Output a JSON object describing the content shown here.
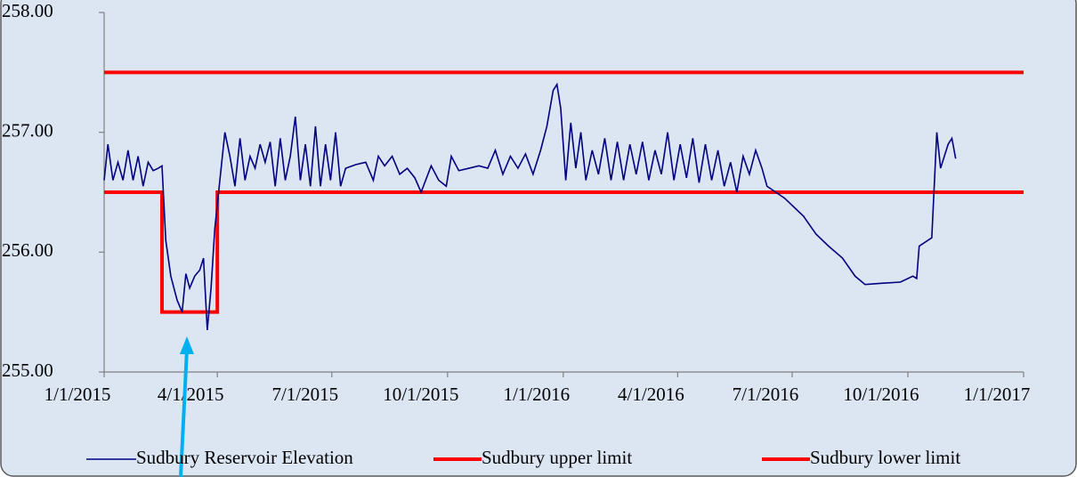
{
  "chart_data": {
    "type": "line",
    "xlim": [
      "2015-01-01",
      "2017-01-01"
    ],
    "xticks": [
      {
        "value": "2015-01-01",
        "label": "1/1/2015"
      },
      {
        "value": "2015-04-01",
        "label": "4/1/2015"
      },
      {
        "value": "2015-07-01",
        "label": "7/1/2015"
      },
      {
        "value": "2015-10-01",
        "label": "10/1/2015"
      },
      {
        "value": "2016-01-01",
        "label": "1/1/2016"
      },
      {
        "value": "2016-04-01",
        "label": "4/1/2016"
      },
      {
        "value": "2016-07-01",
        "label": "7/1/2016"
      },
      {
        "value": "2016-10-01",
        "label": "10/1/2016"
      },
      {
        "value": "2017-01-01",
        "label": "1/1/2017"
      }
    ],
    "ylim": [
      255,
      258
    ],
    "yticks": [
      {
        "value": 255,
        "label": "255.00"
      },
      {
        "value": 256,
        "label": "256.00"
      },
      {
        "value": 257,
        "label": "257.00"
      },
      {
        "value": 258,
        "label": "258.00"
      }
    ],
    "series": [
      {
        "name": "Sudbury Reservoir Elevation",
        "color": "#000080",
        "x": [
          "2015-01-01",
          "2015-01-04",
          "2015-01-08",
          "2015-01-12",
          "2015-01-16",
          "2015-01-20",
          "2015-01-24",
          "2015-01-28",
          "2015-02-01",
          "2015-02-05",
          "2015-02-09",
          "2015-02-13",
          "2015-02-16",
          "2015-02-19",
          "2015-02-23",
          "2015-02-28",
          "2015-03-04",
          "2015-03-07",
          "2015-03-10",
          "2015-03-14",
          "2015-03-18",
          "2015-03-21",
          "2015-03-24",
          "2015-03-27",
          "2015-03-30",
          "2015-04-03",
          "2015-04-07",
          "2015-04-11",
          "2015-04-15",
          "2015-04-19",
          "2015-04-23",
          "2015-04-27",
          "2015-05-01",
          "2015-05-05",
          "2015-05-09",
          "2015-05-13",
          "2015-05-17",
          "2015-05-21",
          "2015-05-25",
          "2015-05-29",
          "2015-06-02",
          "2015-06-06",
          "2015-06-10",
          "2015-06-14",
          "2015-06-18",
          "2015-06-22",
          "2015-06-26",
          "2015-06-30",
          "2015-07-04",
          "2015-07-08",
          "2015-07-12",
          "2015-07-20",
          "2015-07-28",
          "2015-08-03",
          "2015-08-07",
          "2015-08-12",
          "2015-08-18",
          "2015-08-24",
          "2015-08-30",
          "2015-09-05",
          "2015-09-10",
          "2015-09-18",
          "2015-09-24",
          "2015-09-30",
          "2015-10-04",
          "2015-10-10",
          "2015-10-18",
          "2015-10-26",
          "2015-11-02",
          "2015-11-08",
          "2015-11-14",
          "2015-11-20",
          "2015-11-26",
          "2015-12-02",
          "2015-12-08",
          "2015-12-14",
          "2015-12-19",
          "2015-12-24",
          "2015-12-27",
          "2015-12-30",
          "2016-01-03",
          "2016-01-07",
          "2016-01-11",
          "2016-01-15",
          "2016-01-19",
          "2016-01-24",
          "2016-01-29",
          "2016-02-03",
          "2016-02-08",
          "2016-02-13",
          "2016-02-18",
          "2016-02-23",
          "2016-02-28",
          "2016-03-04",
          "2016-03-09",
          "2016-03-14",
          "2016-03-19",
          "2016-03-24",
          "2016-03-29",
          "2016-04-03",
          "2016-04-08",
          "2016-04-13",
          "2016-04-18",
          "2016-04-23",
          "2016-04-28",
          "2016-05-03",
          "2016-05-08",
          "2016-05-13",
          "2016-05-18",
          "2016-05-23",
          "2016-05-28",
          "2016-06-02",
          "2016-06-07",
          "2016-06-11",
          "2016-06-25",
          "2016-07-10",
          "2016-07-20",
          "2016-07-30",
          "2016-08-10",
          "2016-08-20",
          "2016-08-28",
          "2016-09-10",
          "2016-09-25",
          "2016-10-05",
          "2016-10-08",
          "2016-10-10",
          "2016-10-20",
          "2016-10-24",
          "2016-10-27",
          "2016-11-02",
          "2016-11-05",
          "2016-11-08"
        ],
        "values": [
          256.6,
          256.9,
          256.6,
          256.75,
          256.6,
          256.85,
          256.6,
          256.8,
          256.55,
          256.75,
          256.68,
          256.7,
          256.72,
          256.1,
          255.8,
          255.6,
          255.5,
          255.82,
          255.7,
          255.8,
          255.85,
          255.95,
          255.35,
          255.7,
          256.2,
          256.6,
          257.0,
          256.8,
          256.55,
          256.95,
          256.6,
          256.8,
          256.7,
          256.9,
          256.75,
          256.92,
          256.55,
          256.95,
          256.6,
          256.8,
          257.13,
          256.6,
          256.9,
          256.55,
          257.05,
          256.55,
          256.9,
          256.6,
          257.0,
          256.55,
          256.7,
          256.73,
          256.75,
          256.6,
          256.8,
          256.72,
          256.8,
          256.65,
          256.7,
          256.62,
          256.5,
          256.72,
          256.6,
          256.55,
          256.8,
          256.68,
          256.7,
          256.72,
          256.7,
          256.85,
          256.65,
          256.8,
          256.7,
          256.82,
          256.65,
          256.85,
          257.05,
          257.35,
          257.4,
          257.2,
          256.6,
          257.08,
          256.7,
          257.0,
          256.6,
          256.85,
          256.65,
          256.95,
          256.6,
          256.92,
          256.6,
          256.9,
          256.65,
          256.92,
          256.6,
          256.85,
          256.65,
          257.0,
          256.6,
          256.9,
          256.62,
          256.95,
          256.58,
          256.9,
          256.6,
          256.85,
          256.55,
          256.75,
          256.5,
          256.8,
          256.65,
          256.85,
          256.7,
          256.55,
          256.45,
          256.3,
          256.15,
          256.05,
          255.95,
          255.8,
          255.73,
          255.74,
          255.75,
          255.8,
          255.78,
          256.05,
          256.12,
          257.0,
          256.7,
          256.9,
          256.95,
          256.78
        ]
      },
      {
        "name": "Sudbury upper limit",
        "color": "#ff0000",
        "x": [
          "2015-01-01",
          "2017-01-01"
        ],
        "values": [
          257.5,
          257.5
        ]
      },
      {
        "name": "Sudbury lower limit",
        "color": "#ff0000",
        "x": [
          "2015-01-01",
          "2015-02-16",
          "2015-02-16",
          "2015-04-01",
          "2015-04-01",
          "2017-01-01"
        ],
        "values": [
          256.5,
          256.5,
          255.5,
          255.5,
          256.5,
          256.5
        ]
      }
    ]
  }
}
